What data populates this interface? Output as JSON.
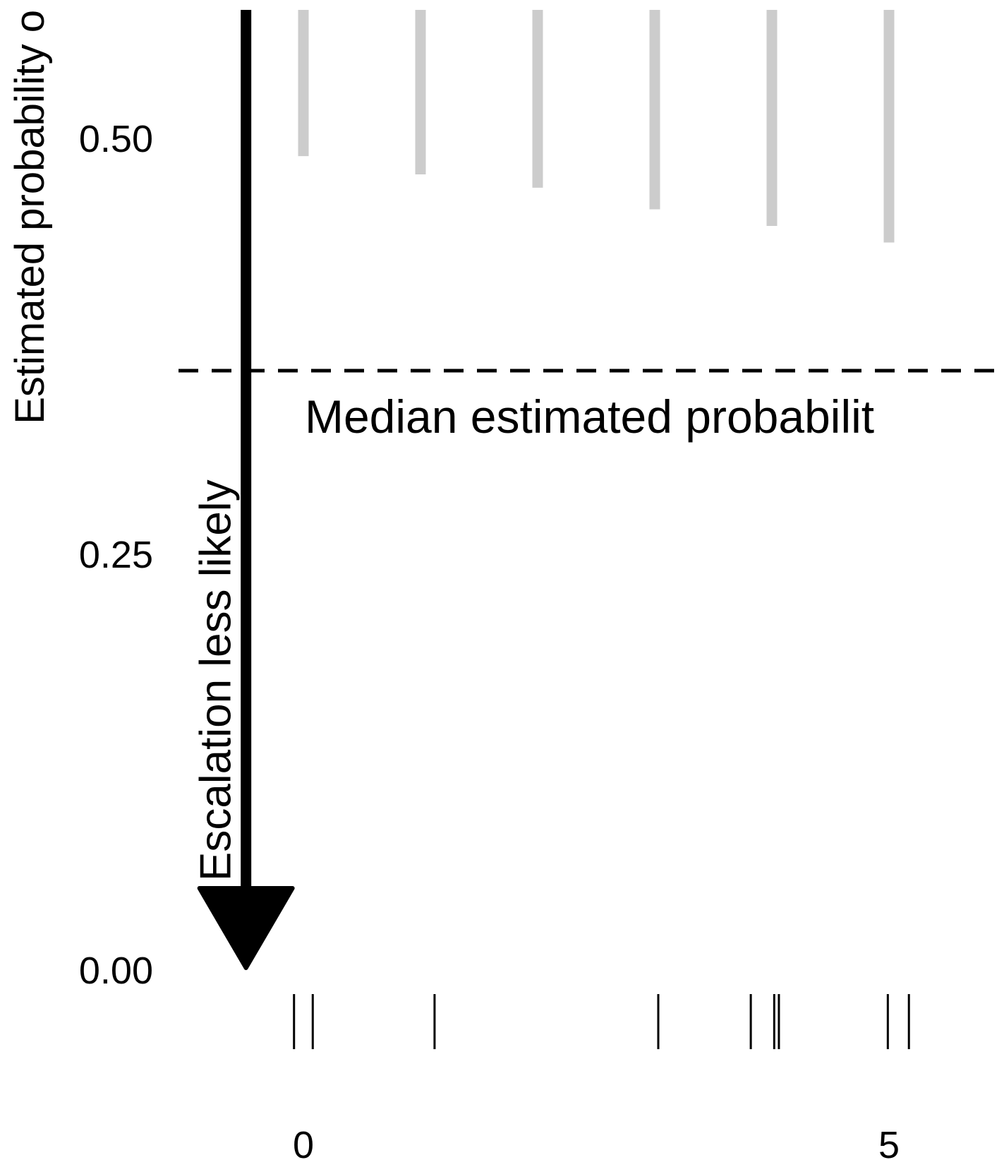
{
  "chart_data": {
    "type": "bar",
    "title": "",
    "ylabel": "Estimated probability o",
    "xlabel": "",
    "ylim": [
      0,
      0.5769
    ],
    "xlim": [
      -0.92,
      5.48
    ],
    "grid": false,
    "legend": "none",
    "y_ticks": [
      {
        "value": 0.0,
        "label": "0.00"
      },
      {
        "value": 0.25,
        "label": "0.25"
      },
      {
        "value": 0.5,
        "label": "0.50"
      }
    ],
    "x_ticks": [
      {
        "value": 0,
        "label": "0"
      },
      {
        "value": 5,
        "label": "5"
      }
    ],
    "series": [
      {
        "x": [
          0,
          1,
          2,
          3,
          4,
          5
        ],
        "upper": [
          0.5769,
          0.5769,
          0.5769,
          0.5769,
          0.5769,
          0.5769
        ],
        "lower": [
          0.489,
          0.478,
          0.47,
          0.457,
          0.447,
          0.437
        ],
        "color": "#cccccc"
      }
    ],
    "median_line": {
      "value": 0.36,
      "label": "Median estimated probabilit",
      "color": "#000000"
    },
    "arrow": {
      "label": "Escalation less likely",
      "from": 0.5769,
      "to": 0.0,
      "x": -0.49,
      "color": "#000000"
    },
    "rug": {
      "x": [
        -0.08,
        0.08,
        1.12,
        3.03,
        3.82,
        4.02,
        4.06,
        4.99,
        5.17
      ],
      "color": "#000000"
    }
  }
}
